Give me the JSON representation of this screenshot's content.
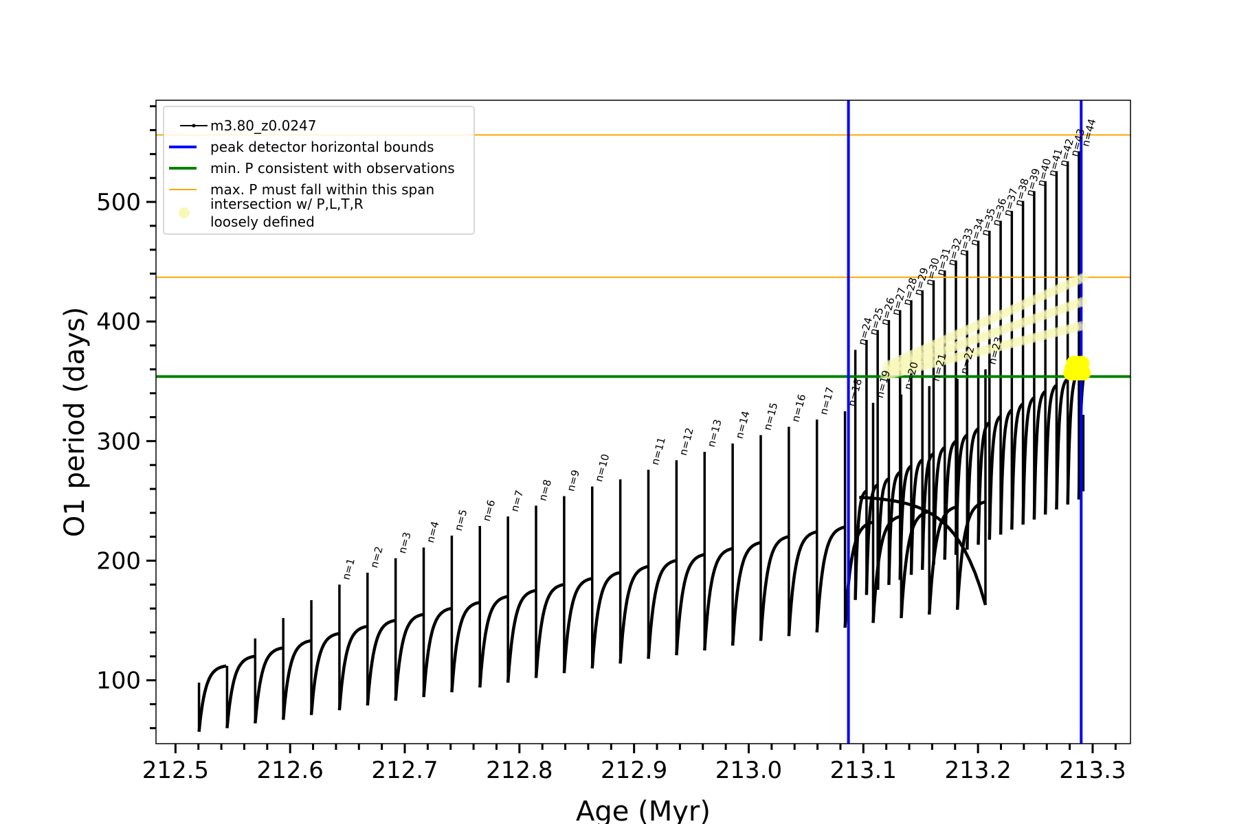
{
  "chart_data": {
    "type": "line",
    "xlabel": "Age (Myr)",
    "ylabel": "O1 period (days)",
    "xlim": [
      212.483,
      213.333
    ],
    "ylim": [
      47,
      585
    ],
    "x_major_ticks": [
      212.5,
      212.6,
      212.7,
      212.8,
      212.9,
      213.0,
      213.1,
      213.2,
      213.3
    ],
    "x_tick_labels": [
      "212.5",
      "212.6",
      "212.7",
      "212.8",
      "212.9",
      "213.0",
      "213.1",
      "213.2",
      "213.3"
    ],
    "x_minor_step": 0.02,
    "y_major_ticks": [
      100,
      200,
      300,
      400,
      500
    ],
    "y_tick_labels": [
      "100",
      "200",
      "300",
      "400",
      "500"
    ],
    "y_minor_step": 20,
    "grid": false,
    "legend_position": "top-left",
    "series": [
      {
        "name": "m3.80_z0.0247",
        "color": "#000000",
        "description_type": "pulse-train",
        "pulses": [
          {
            "start": 212.5205,
            "min": 57,
            "peak": 112,
            "top": 98
          },
          {
            "start": 212.545,
            "min": 60,
            "peak": 120,
            "top": 112
          },
          {
            "start": 212.5695,
            "min": 64,
            "peak": 127,
            "top": 135
          },
          {
            "start": 212.594,
            "min": 67,
            "peak": 133,
            "top": 152
          },
          {
            "start": 212.6185,
            "min": 71,
            "peak": 139,
            "top": 167
          },
          {
            "start": 212.643,
            "min": 75,
            "peak": 145,
            "top": 180,
            "label": "n=1"
          },
          {
            "start": 212.6675,
            "min": 79,
            "peak": 150,
            "top": 190,
            "label": "n=2"
          },
          {
            "start": 212.692,
            "min": 83,
            "peak": 155,
            "top": 202,
            "label": "n=3"
          },
          {
            "start": 212.7165,
            "min": 86,
            "peak": 160,
            "top": 211,
            "label": "n=4"
          },
          {
            "start": 212.741,
            "min": 90,
            "peak": 165,
            "top": 221,
            "label": "n=5"
          },
          {
            "start": 212.7655,
            "min": 94,
            "peak": 170,
            "top": 229,
            "label": "n=6"
          },
          {
            "start": 212.79,
            "min": 98,
            "peak": 175,
            "top": 237,
            "label": "n=7"
          },
          {
            "start": 212.8145,
            "min": 102,
            "peak": 180,
            "top": 246,
            "label": "n=8"
          },
          {
            "start": 212.839,
            "min": 106,
            "peak": 185,
            "top": 254,
            "label": "n=9"
          },
          {
            "start": 212.8635,
            "min": 110,
            "peak": 190,
            "top": 262,
            "label": "n=10"
          },
          {
            "start": 212.888,
            "min": 114,
            "peak": 195,
            "top": 268
          },
          {
            "start": 212.9125,
            "min": 118,
            "peak": 200,
            "top": 276,
            "label": "n=11"
          },
          {
            "start": 212.937,
            "min": 121,
            "peak": 205,
            "top": 284,
            "label": "n=12"
          },
          {
            "start": 212.9615,
            "min": 125,
            "peak": 210,
            "top": 291,
            "label": "n=13"
          },
          {
            "start": 212.986,
            "min": 129,
            "peak": 215,
            "top": 298,
            "label": "n=14"
          },
          {
            "start": 213.0105,
            "min": 133,
            "peak": 220,
            "top": 305,
            "label": "n=15"
          },
          {
            "start": 213.035,
            "min": 137,
            "peak": 224,
            "top": 312,
            "label": "n=16"
          },
          {
            "start": 213.0595,
            "min": 140,
            "peak": 228,
            "top": 318,
            "label": "n=17"
          },
          {
            "start": 213.084,
            "min": 144,
            "peak": 232,
            "top": 325,
            "label": "n=18"
          },
          {
            "start": 213.1085,
            "min": 148,
            "peak": 237,
            "top": 332,
            "label": "n=19"
          },
          {
            "start": 213.133,
            "min": 152,
            "peak": 241,
            "top": 339,
            "label": "n=20"
          },
          {
            "start": 213.1575,
            "min": 155,
            "peak": 245,
            "top": 346,
            "label": "n=21"
          },
          {
            "start": 213.182,
            "min": 159,
            "peak": 249,
            "top": 352,
            "label": "n=22"
          },
          {
            "start": 213.2065,
            "min": 163,
            "peak": 253,
            "top": 360,
            "label": "n=23"
          }
        ]
      }
    ],
    "legend": [
      {
        "label": "m3.80_z0.0247",
        "kind": "line-marker",
        "color": "#000000"
      },
      {
        "label": "peak detector horizontal bounds",
        "kind": "line",
        "color": "#0000ff"
      },
      {
        "label": "min. P consistent with observations",
        "kind": "line",
        "color": "#008000"
      },
      {
        "label": "max. P must fall within this span",
        "kind": "line",
        "color": "#ffa500"
      },
      {
        "label": "intersection w/ P,L,T,R",
        "label2": "loosely defined",
        "kind": "dot",
        "color": "#f8f8b8"
      }
    ],
    "reference_lines": {
      "vertical_blue": [
        213.087,
        213.29
      ],
      "horizontal_green": 354,
      "horizontal_orange": [
        437,
        556
      ]
    },
    "pulse_labels_right": [
      "n=24",
      "n=25",
      "n=26",
      "n=27",
      "n=28",
      "n=29",
      "n=30",
      "n=31",
      "n=32",
      "n=33",
      "n=34",
      "n=35",
      "n=36",
      "n=37",
      "n=38",
      "n=39",
      "n=40",
      "n=41",
      "n=42",
      "n=43",
      "n=44"
    ],
    "colors": {
      "track": "#000000",
      "bounds": "#0000ff",
      "min_p": "#008000",
      "max_p": "#ffa500",
      "intersection": "#ffff00",
      "intersection_faint": "#f8f8b8"
    }
  }
}
